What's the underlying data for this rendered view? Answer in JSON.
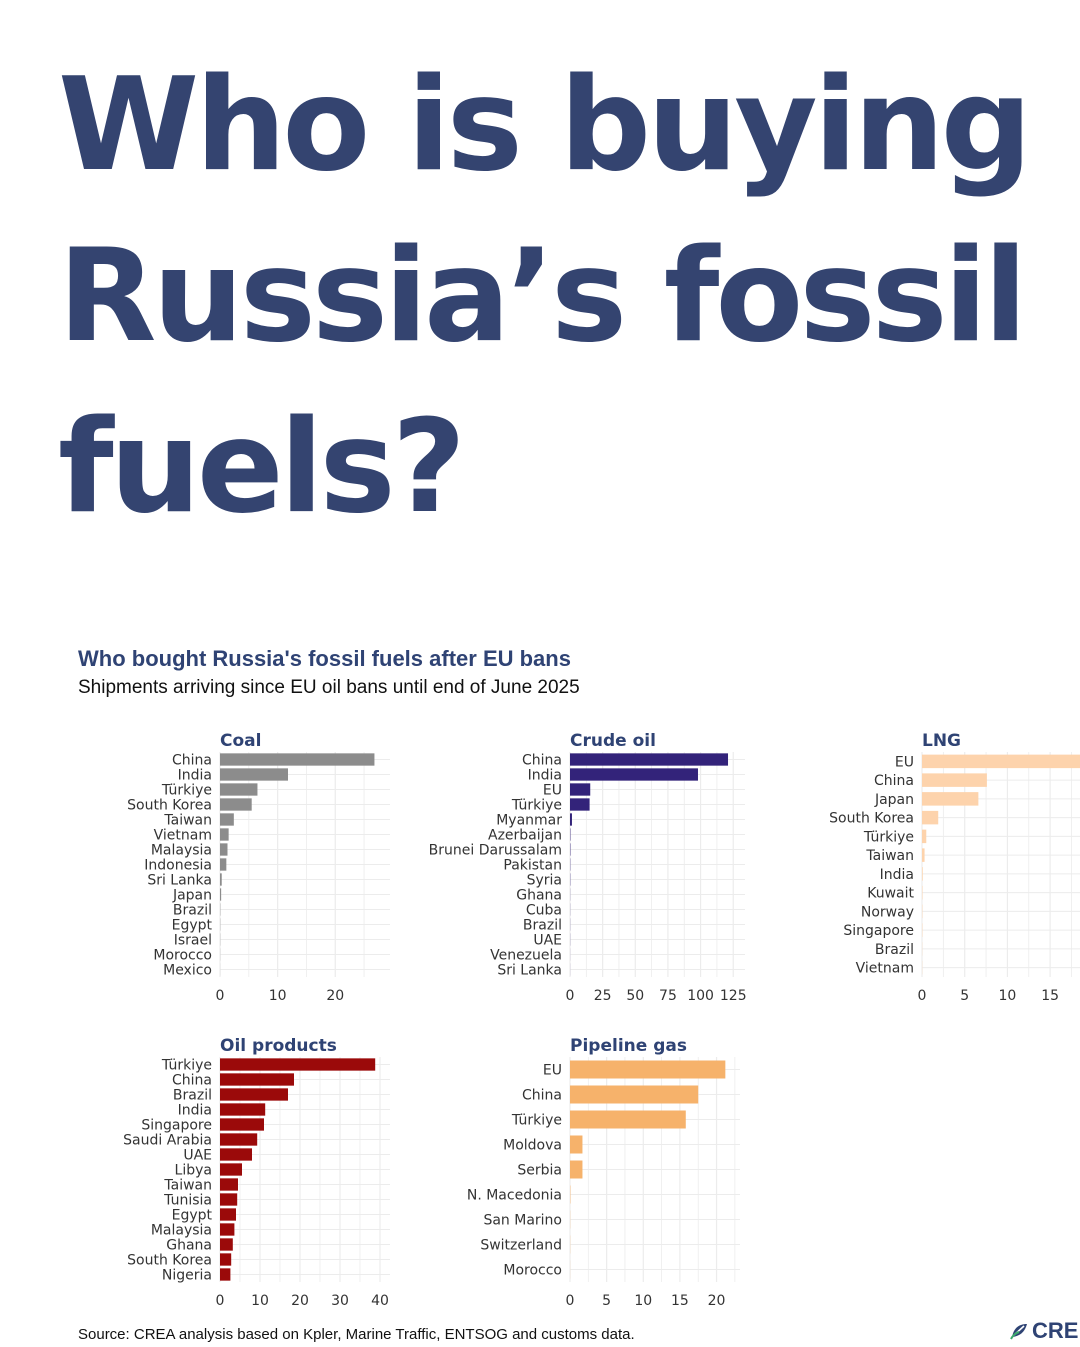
{
  "headline": "Who is buying Russia’s fossil fuels?",
  "chart_title": "Who bought Russia's fossil fuels after EU bans",
  "chart_subtitle": "Shipments arriving since EU oil bans until end of June 2025",
  "source": "Source: CREA analysis based on Kpler, Marine Traffic, ENTSOG and customs data.",
  "logo": {
    "text": "CRE",
    "icon": "crea-leaf-icon",
    "color": "#2f4374"
  },
  "chart_data": [
    {
      "type": "bar",
      "orientation": "horizontal",
      "title": "Coal",
      "color": "#8c8c8c",
      "categories": [
        "China",
        "India",
        "Türkiye",
        "South Korea",
        "Taiwan",
        "Vietnam",
        "Malaysia",
        "Indonesia",
        "Sri Lanka",
        "Japan",
        "Brazil",
        "Egypt",
        "Israel",
        "Morocco",
        "Mexico"
      ],
      "values": [
        26.8,
        11.8,
        6.5,
        5.5,
        2.4,
        1.5,
        1.3,
        1.1,
        0.3,
        0.2,
        0.05,
        0.04,
        0.03,
        0.02,
        0.01
      ],
      "xticks": [
        0,
        10,
        20
      ],
      "xlim": [
        0,
        29.5
      ],
      "grid": true
    },
    {
      "type": "bar",
      "orientation": "horizontal",
      "title": "Crude oil",
      "color": "#33237a",
      "categories": [
        "China",
        "India",
        "EU",
        "Türkiye",
        "Myanmar",
        "Azerbaijan",
        "Brunei Darussalam",
        "Pakistan",
        "Syria",
        "Ghana",
        "Cuba",
        "Brazil",
        "UAE",
        "Venezuela",
        "Sri Lanka"
      ],
      "values": [
        121,
        98,
        15.5,
        15,
        1.5,
        0.3,
        0.3,
        0.2,
        0.2,
        0.1,
        0.1,
        0.1,
        0.1,
        0.05,
        0.05
      ],
      "xticks": [
        0,
        25,
        50,
        75,
        100,
        125
      ],
      "xlim": [
        0,
        134
      ],
      "grid": true
    },
    {
      "type": "bar",
      "orientation": "horizontal",
      "title": "LNG",
      "color": "#fdd3ac",
      "categories": [
        "EU",
        "China",
        "Japan",
        "South Korea",
        "Türkiye",
        "Taiwan",
        "India",
        "Kuwait",
        "Norway",
        "Singapore",
        "Brazil",
        "Vietnam"
      ],
      "values": [
        18.5,
        7.6,
        6.6,
        1.9,
        0.5,
        0.3,
        0.08,
        0.05,
        0.04,
        0.04,
        0.02,
        0.02
      ],
      "xticks": [
        0,
        5,
        10,
        15
      ],
      "xlim": [
        0,
        18.5
      ],
      "grid": true
    },
    {
      "type": "bar",
      "orientation": "horizontal",
      "title": "Oil products",
      "color": "#9b0a0a",
      "categories": [
        "Türkiye",
        "China",
        "Brazil",
        "India",
        "Singapore",
        "Saudi Arabia",
        "UAE",
        "Libya",
        "Taiwan",
        "Tunisia",
        "Egypt",
        "Malaysia",
        "Ghana",
        "South Korea",
        "Nigeria"
      ],
      "values": [
        38.8,
        18.5,
        17,
        11.3,
        11,
        9.3,
        8,
        5.5,
        4.5,
        4.3,
        4,
        3.6,
        3.2,
        2.8,
        2.6
      ],
      "xticks": [
        0,
        10,
        20,
        30,
        40
      ],
      "xlim": [
        0,
        42.5
      ],
      "grid": true
    },
    {
      "type": "bar",
      "orientation": "horizontal",
      "title": "Pipeline gas",
      "color": "#f6b26b",
      "categories": [
        "EU",
        "China",
        "Türkiye",
        "Moldova",
        "Serbia",
        "N. Macedonia",
        "San Marino",
        "Switzerland",
        "Morocco"
      ],
      "values": [
        21.2,
        17.5,
        15.8,
        1.7,
        1.7,
        0.05,
        0.02,
        0.02,
        0.01
      ],
      "xticks": [
        0,
        5,
        10,
        15,
        20
      ],
      "xlim": [
        0,
        23.2
      ],
      "grid": true
    }
  ]
}
